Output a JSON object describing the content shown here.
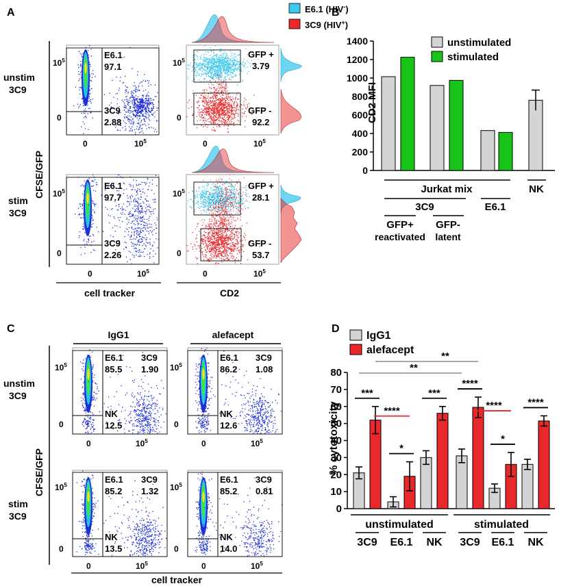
{
  "colors": {
    "cyan": "#3cc8ef",
    "red": "#e8282a",
    "gray": "#d4d4d4",
    "green": "#18c418",
    "blue": "#1f2fd8",
    "line": "#000000",
    "sig_gray": "#9a9a9a"
  },
  "panels": {
    "a": "A",
    "b": "B",
    "c": "C",
    "d": "D"
  },
  "panel_a": {
    "legend": [
      {
        "label": "E6.1 (HIV",
        "sup": "-",
        "close": ")",
        "color": "#3cc8ef"
      },
      {
        "label": "3C9 (HIV",
        "sup": "+",
        "close": ")",
        "color": "#e8282a"
      }
    ],
    "row_labels": [
      [
        "unstim",
        "3C9"
      ],
      [
        "stim",
        "3C9"
      ]
    ],
    "yaxis_label": "CFSE/GFP",
    "ticks": {
      "zero": "0",
      "ten": "10",
      "exp": "5"
    },
    "xlabel_left": "cell tracker",
    "xlabel_right": "CD2",
    "gates": [
      {
        "top_name": "E6.1",
        "top_value": "97.1",
        "bottom_name": "3C9",
        "bottom_value": "2.88",
        "gfp_pos": "GFP +",
        "gfp_pos_value": "3.79",
        "gfp_neg": "GFP -",
        "gfp_neg_value": "92.2"
      },
      {
        "top_name": "E6.1",
        "top_value": "97.7",
        "bottom_name": "3C9",
        "bottom_value": "2.26",
        "gfp_pos": "GFP +",
        "gfp_pos_value": "28.1",
        "gfp_neg": "GFP -",
        "gfp_neg_value": "53.7"
      }
    ]
  },
  "panel_c": {
    "col_labels": [
      "IgG1",
      "alefacept"
    ],
    "row_labels": [
      [
        "unstim",
        "3C9"
      ],
      [
        "stim",
        "3C9"
      ]
    ],
    "yaxis_label": "CFSE/GFP",
    "xlabel": "cell tracker",
    "plots": [
      {
        "e61": "E6.1",
        "e61_value": "85.5",
        "c39": "3C9",
        "c39_value": "1.90",
        "nk": "NK",
        "nk_value": "12.5"
      },
      {
        "e61": "E6.1",
        "e61_value": "86.2",
        "c39": "3C9",
        "c39_value": "1.08",
        "nk": "NK",
        "nk_value": "12.6"
      },
      {
        "e61": "E6.1",
        "e61_value": "85.2",
        "c39": "3C9",
        "c39_value": "1.32",
        "nk": "NK",
        "nk_value": "13.5"
      },
      {
        "e61": "E6.1",
        "e61_value": "85.2",
        "c39": "3C9",
        "c39_value": "0.81",
        "nk": "NK",
        "nk_value": "14.0"
      }
    ]
  },
  "chart_data": [
    {
      "type": "bar",
      "panel": "B",
      "ylabel": "CD2 MFI",
      "ylim": [
        0,
        1400
      ],
      "yticks": [
        "0",
        "200",
        "400",
        "600",
        "800",
        "1000",
        "1200",
        "1400"
      ],
      "series": [
        {
          "name": "unstimulated",
          "color": "#d4d4d4"
        },
        {
          "name": "stimulated",
          "color": "#18c418"
        }
      ],
      "bars": [
        {
          "group": "3C9 GFP+ reactivated",
          "series": "unstimulated",
          "value": 1015
        },
        {
          "group": "3C9 GFP+ reactivated",
          "series": "stimulated",
          "value": 1225
        },
        {
          "group": "3C9 GFP- latent",
          "series": "unstimulated",
          "value": 920
        },
        {
          "group": "3C9 GFP- latent",
          "series": "stimulated",
          "value": 975
        },
        {
          "group": "E6.1",
          "series": "unstimulated",
          "value": 432
        },
        {
          "group": "E6.1",
          "series": "stimulated",
          "value": 412
        },
        {
          "group": "NK",
          "series": "unstimulated",
          "value": 760,
          "error": 110
        }
      ],
      "group_labels": {
        "jurkat": "Jurkat mix",
        "c39": "3C9",
        "e61": "E6.1",
        "nk": "NK",
        "gfp_pos": "GFP+",
        "reactivated": "reactivated",
        "gfp_neg": "GFP-",
        "latent": "latent"
      }
    },
    {
      "type": "bar",
      "panel": "D",
      "ylabel": "% cytotoxicity",
      "ylim": [
        0,
        80
      ],
      "yticks": [
        "0",
        "10",
        "20",
        "30",
        "40",
        "50",
        "60",
        "70",
        "80"
      ],
      "series": [
        {
          "name": "IgG1",
          "color": "#d4d4d4"
        },
        {
          "name": "alefacept",
          "color": "#e8282a"
        }
      ],
      "categories": [
        "3C9",
        "E6.1",
        "NK",
        "3C9",
        "E6.1",
        "NK"
      ],
      "conditions": [
        "unstimulated",
        "stimulated"
      ],
      "values_igg1": [
        21,
        4,
        30,
        31,
        12,
        26
      ],
      "errors_igg1": [
        3.5,
        3,
        4,
        4,
        2.5,
        3
      ],
      "values_alefacept": [
        52,
        19,
        56,
        59.5,
        26,
        51.5
      ],
      "errors_alefacept": [
        8,
        8.5,
        4,
        6,
        7,
        3
      ],
      "significance": [
        {
          "label": "***",
          "pair": "igg1-ale",
          "cat": 0,
          "color": "black"
        },
        {
          "label": "****",
          "pair": "ale-ale",
          "cat": 0,
          "color": "red"
        },
        {
          "label": "*",
          "pair": "igg1-ale",
          "cat": 1,
          "color": "black"
        },
        {
          "label": "***",
          "pair": "igg1-ale",
          "cat": 2,
          "color": "black"
        },
        {
          "label": "****",
          "pair": "igg1-ale",
          "cat": 3,
          "color": "black"
        },
        {
          "label": "****",
          "pair": "ale-ale",
          "cat": 3,
          "color": "red"
        },
        {
          "label": "*",
          "pair": "igg1-ale",
          "cat": 4,
          "color": "black"
        },
        {
          "label": "****",
          "pair": "igg1-ale",
          "cat": 5,
          "color": "black"
        },
        {
          "label": "**",
          "pair": "long1",
          "color": "gray"
        },
        {
          "label": "**",
          "pair": "long2",
          "color": "gray"
        }
      ]
    }
  ]
}
